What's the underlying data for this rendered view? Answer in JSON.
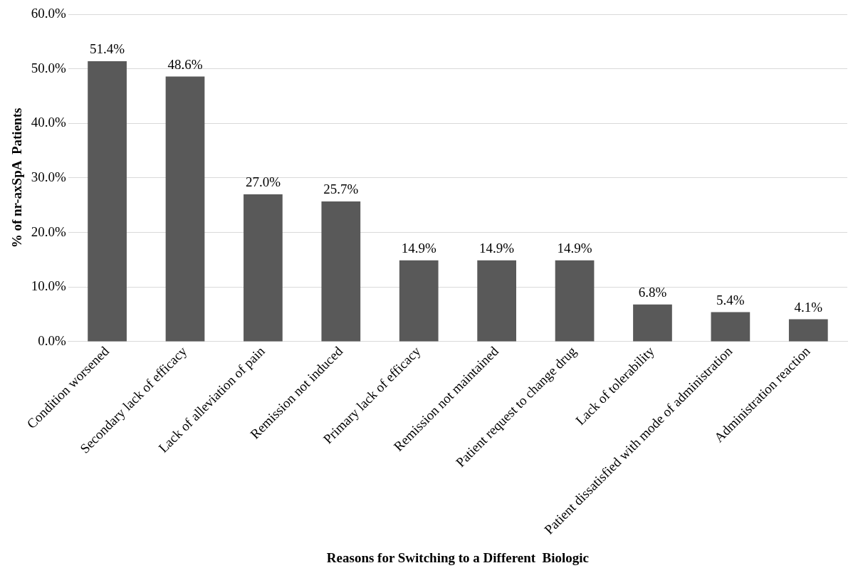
{
  "chart_data": {
    "type": "bar",
    "xlabel": "Reasons for Switching to a Different  Biologic",
    "ylabel": "% of nr-axSpA  Patients",
    "categories": [
      "Condition worsened",
      "Secondary lack of efficacy",
      "Lack of alleviation of pain",
      "Remission not induced",
      "Primary lack of efficacy",
      "Remission not maintained",
      "Patient request to change drug",
      "Lack of tolerability",
      "Patient dissatisfied with mode of administration",
      "Administration reaction"
    ],
    "values": [
      51.4,
      48.6,
      27.0,
      25.7,
      14.9,
      14.9,
      14.9,
      6.8,
      5.4,
      4.1
    ],
    "value_labels": [
      "51.4%",
      "48.6%",
      "27.0%",
      "25.7%",
      "14.9%",
      "14.9%",
      "14.9%",
      "6.8%",
      "5.4%",
      "4.1%"
    ],
    "color": "#595959",
    "ylim": [
      0,
      60
    ],
    "yticks": [
      {
        "value": 0,
        "label": "0.0%"
      },
      {
        "value": 10,
        "label": "10.0%"
      },
      {
        "value": 20,
        "label": "20.0%"
      },
      {
        "value": 30,
        "label": "30.0%"
      },
      {
        "value": 40,
        "label": "40.0%"
      },
      {
        "value": 50,
        "label": "50.0%"
      },
      {
        "value": 60,
        "label": "60.0%"
      }
    ],
    "grid": "y",
    "legend": false
  }
}
